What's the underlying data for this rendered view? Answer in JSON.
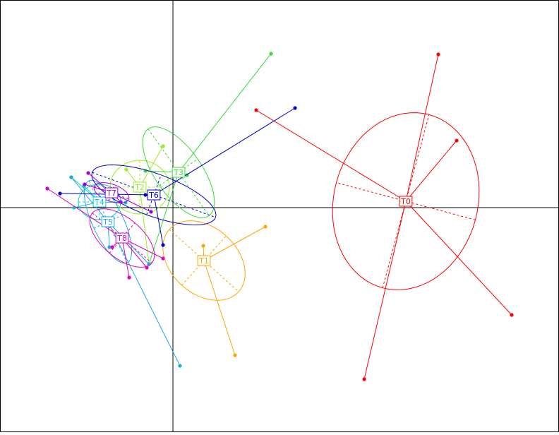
{
  "chart_data": {
    "type": "scatter",
    "subtype": "s.class star plot with inertia ellipses",
    "title": "",
    "xlabel": "",
    "ylabel": "",
    "grid": false,
    "axes_through_origin": true,
    "xlim": [
      -2.45,
      5.47
    ],
    "ylim": [
      -3.18,
      2.94
    ],
    "groups": [
      {
        "label": "T0",
        "color": "#ff0000",
        "center": [
          3.3,
          0.09
        ],
        "ellipse": {
          "semi_axes": [
            1.27,
            1.02
          ],
          "angle_deg": 75
        },
        "points": [
          [
            3.76,
            2.17
          ],
          [
            4.02,
            0.95
          ],
          [
            4.8,
            -1.52
          ],
          [
            2.71,
            -2.43
          ],
          [
            1.18,
            1.38
          ]
        ]
      },
      {
        "label": "T1",
        "color": "#ffa500",
        "center": [
          0.44,
          -0.75
        ],
        "ellipse": {
          "semi_axes": [
            0.66,
            0.47
          ],
          "angle_deg": -42
        },
        "points": [
          [
            1.31,
            -0.27
          ],
          [
            0.88,
            -2.09
          ],
          [
            0.43,
            -0.54
          ]
        ]
      },
      {
        "label": "T2",
        "color": "#9aee1e",
        "center": [
          -0.47,
          0.29
        ],
        "ellipse": {
          "semi_axes": [
            0.42,
            0.38
          ],
          "angle_deg": 0
        },
        "points": [
          [
            -0.14,
            0.87
          ],
          [
            -0.66,
            0.54
          ],
          [
            -0.34,
            -0.8
          ]
        ]
      },
      {
        "label": "T3",
        "color": "#33dd33",
        "center": [
          0.08,
          0.5
        ],
        "ellipse": {
          "semi_axes": [
            0.75,
            0.33
          ],
          "angle_deg": -55
        },
        "points": [
          [
            1.39,
            2.18
          ],
          [
            -0.39,
            0.52
          ],
          [
            0.2,
            0.46
          ],
          [
            -0.34,
            -0.8
          ]
        ]
      },
      {
        "label": "T4",
        "color": "#00ced1",
        "center": [
          -1.04,
          0.08
        ],
        "ellipse": {
          "semi_axes": [
            0.3,
            0.25
          ],
          "angle_deg": 0
        },
        "points": [
          [
            -1.44,
            0.43
          ],
          [
            -1.4,
            0.0
          ],
          [
            -0.67,
            0.07
          ],
          [
            -1.26,
            0.31
          ]
        ]
      },
      {
        "label": "T5",
        "color": "#1ea8e8",
        "center": [
          -0.92,
          -0.2
        ],
        "ellipse": {
          "semi_axes": [
            0.64,
            0.22
          ],
          "angle_deg": -65
        },
        "points": [
          [
            0.1,
            -2.24
          ],
          [
            -0.9,
            -0.56
          ],
          [
            -1.44,
            0.43
          ],
          [
            -0.34,
            -0.8
          ]
        ]
      },
      {
        "label": "T6",
        "color": "#0000cc",
        "center": [
          -0.27,
          0.18
        ],
        "ellipse": {
          "semi_axes": [
            0.93,
            0.3
          ],
          "angle_deg": -20
        },
        "points": [
          [
            1.73,
            1.41
          ],
          [
            -1.6,
            0.2
          ],
          [
            -0.14,
            -0.53
          ],
          [
            -0.39,
            0.18
          ]
        ]
      },
      {
        "label": "T7",
        "color": "#a000e0",
        "center": [
          -0.87,
          0.21
        ],
        "ellipse": {
          "semi_axes": [
            0.26,
            0.12
          ],
          "angle_deg": -20
        },
        "points": [
          [
            -1.2,
            0.49
          ],
          [
            -0.74,
            0.08
          ],
          [
            -1.25,
            0.33
          ],
          [
            -0.31,
            -0.06
          ]
        ]
      },
      {
        "label": "T8",
        "color": "#e000c0",
        "center": [
          -0.72,
          -0.43
        ],
        "ellipse": {
          "semi_axes": [
            0.55,
            0.28
          ],
          "angle_deg": -40
        },
        "points": [
          [
            -1.78,
            0.27
          ],
          [
            -0.14,
            -0.72
          ],
          [
            -0.62,
            -0.99
          ],
          [
            -0.37,
            -0.85
          ],
          [
            -0.86,
            -0.56
          ]
        ]
      }
    ]
  }
}
